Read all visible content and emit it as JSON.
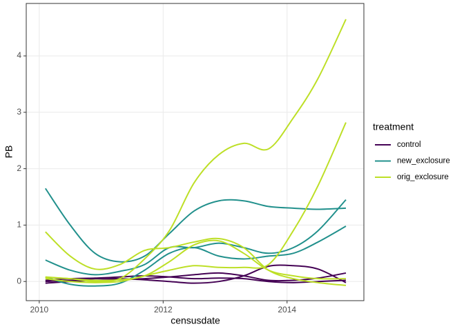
{
  "chart_data": {
    "type": "line",
    "x_label": "censusdate",
    "y_label": "PB",
    "legend_title": "treatment",
    "x": [
      2010.1,
      2010.5,
      2010.9,
      2011.3,
      2011.7,
      2012.1,
      2012.5,
      2012.9,
      2013.3,
      2013.7,
      2014.1,
      2014.5,
      2014.95
    ],
    "series": [
      {
        "name": "control",
        "color": "#440154",
        "values": [
          [
            -0.03,
            0.0,
            0.02,
            0.03,
            0.05,
            0.08,
            0.12,
            0.15,
            0.1,
            0.02,
            0.02,
            0.06,
            0.15
          ],
          [
            0.0,
            0.02,
            0.05,
            0.05,
            0.03,
            0.0,
            -0.03,
            0.0,
            0.1,
            0.27,
            0.28,
            0.22,
            -0.02
          ],
          [
            0.02,
            0.05,
            0.06,
            0.08,
            0.1,
            0.08,
            0.05,
            0.06,
            0.05,
            0.0,
            -0.02,
            0.0,
            0.02
          ]
        ]
      },
      {
        "name": "new_exclosure",
        "color": "#21908c",
        "values": [
          [
            1.65,
            1.0,
            0.5,
            0.35,
            0.45,
            0.85,
            1.25,
            1.43,
            1.43,
            1.33,
            1.3,
            1.28,
            1.3
          ],
          [
            0.38,
            0.2,
            0.12,
            0.18,
            0.3,
            0.6,
            0.6,
            0.68,
            0.6,
            0.5,
            0.6,
            0.9,
            1.45
          ],
          [
            0.08,
            -0.05,
            -0.08,
            -0.03,
            0.2,
            0.5,
            0.6,
            0.45,
            0.4,
            0.45,
            0.5,
            0.7,
            0.98
          ]
        ]
      },
      {
        "name": "orig_exclosure",
        "color": "#bddf26",
        "values": [
          [
            0.07,
            0.05,
            0.0,
            0.05,
            0.4,
            0.9,
            1.75,
            2.25,
            2.45,
            2.35,
            2.9,
            3.6,
            4.65
          ],
          [
            0.05,
            0.0,
            -0.02,
            0.0,
            0.1,
            0.2,
            0.28,
            0.25,
            0.25,
            0.3,
            0.9,
            1.7,
            2.82
          ],
          [
            0.88,
            0.45,
            0.22,
            0.3,
            0.55,
            0.6,
            0.7,
            0.76,
            0.6,
            0.2,
            0.05,
            -0.02,
            -0.07
          ],
          [
            0.08,
            0.05,
            0.02,
            0.03,
            0.1,
            0.35,
            0.65,
            0.72,
            0.5,
            0.2,
            0.1,
            0.05,
            0.05
          ]
        ]
      }
    ],
    "xlim": [
      2009.79,
      2015.24
    ],
    "xticks": [
      2010,
      2012,
      2014
    ],
    "ylim": [
      -0.34,
      4.93
    ],
    "yticks": [
      0,
      1,
      2,
      3,
      4
    ],
    "grid": true
  }
}
